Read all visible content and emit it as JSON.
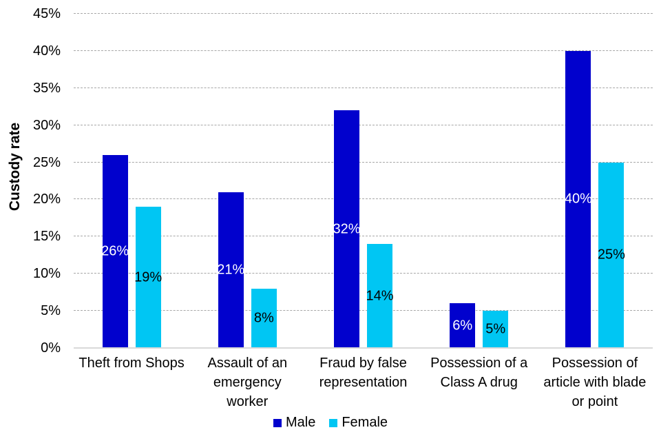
{
  "chart_data": {
    "type": "bar",
    "title": "",
    "xlabel": "",
    "ylabel": "Custody rate",
    "ylim": [
      0,
      45
    ],
    "ytick_step": 5,
    "ytick_suffix": "%",
    "grid": "horizontal-dashed",
    "gridline_color": "#A6A6A6",
    "axis_line_color": "#D9D9D9",
    "legend_position": "bottom-center",
    "categories": [
      "Theft from Shops",
      "Assault of an emergency worker",
      "Fraud by false representation",
      "Possession of a Class A drug",
      "Possession of article with blade or point"
    ],
    "series": [
      {
        "name": "Male",
        "color": "#0101CD",
        "label_color": "#FFFFFF",
        "values": [
          26,
          21,
          32,
          6,
          40
        ],
        "labels": [
          "26%",
          "21%",
          "32%",
          "6%",
          "40%"
        ]
      },
      {
        "name": "Female",
        "color": "#00C6F3",
        "label_color": "#000000",
        "values": [
          19,
          8,
          14,
          5,
          25
        ],
        "labels": [
          "19%",
          "8%",
          "14%",
          "5%",
          "25%"
        ]
      }
    ]
  }
}
